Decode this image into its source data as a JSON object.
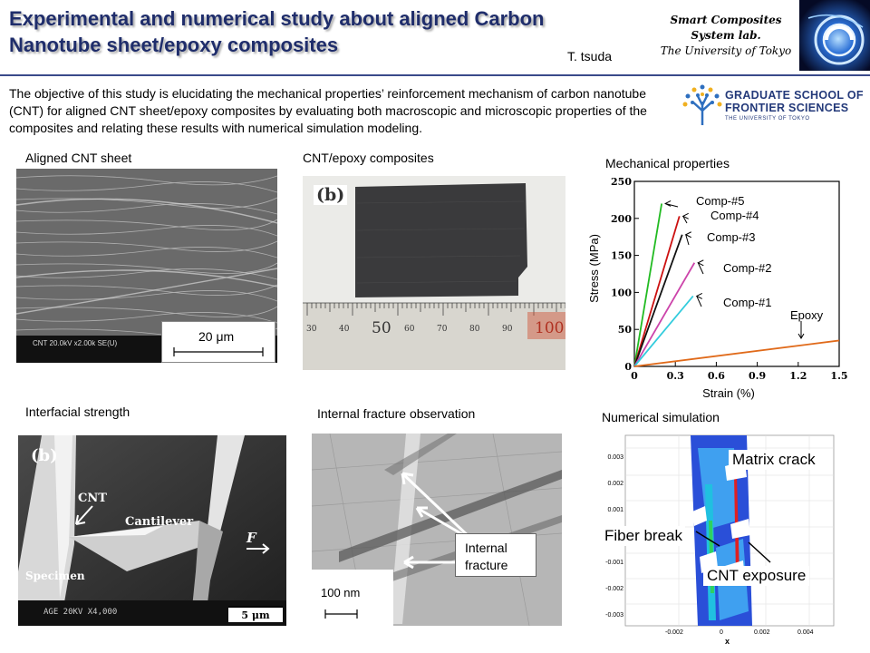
{
  "header": {
    "title_line1": "Experimental and numerical study about aligned Carbon",
    "title_line2": "Nanotube sheet/epoxy composites",
    "author": "T. tsuda",
    "lab_line1": "Smart Composites",
    "lab_line2": "System lab.",
    "lab_line3": "The University of Tokyo"
  },
  "objective": "The objective of this study is elucidating the mechanical properties’ reinforcement mechanism of carbon nanotube (CNT) for aligned CNT sheet/epoxy composites by evaluating both macroscopic and microscopic properties of the composites and relating these results with numerical simulation modeling.",
  "logo": {
    "line1": "GRADUATE SCHOOL OF",
    "line2": "FRONTIER SCIENCES",
    "line3": "THE UNIVERSITY OF TOKYO"
  },
  "panels": {
    "cnt_sheet": {
      "caption": "Aligned CNT sheet",
      "scale": "20 μm",
      "sem_label": "CNT 20.0kV x2.00k SE(U)"
    },
    "composites": {
      "caption": "CNT/epoxy composites",
      "label": "(b)",
      "ruler_ticks": [
        "30",
        "40",
        "50",
        "60",
        "70",
        "80",
        "90",
        "100"
      ]
    },
    "mechanical": {
      "caption": "Mechanical properties"
    },
    "interfacial": {
      "caption": "Interfacial strength",
      "label": "(b)",
      "cnt": "CNT",
      "cantilever": "Cantilever",
      "force": "F",
      "specimen": "Specimen",
      "scale": "5 μm",
      "sem_info": "AGE  20KV   X4,000"
    },
    "fracture": {
      "caption": "Internal fracture observation",
      "label_line1": "Internal",
      "label_line2": "fracture",
      "scale": "100 nm"
    },
    "simulation": {
      "caption": "Numerical simulation",
      "matrix_crack": "Matrix crack",
      "fiber_break": "Fiber break",
      "cnt_exposure": "CNT exposure",
      "y_ticks": [
        "0.003",
        "0.002",
        "0.001",
        "-0.001",
        "-0.002",
        "-0.003"
      ],
      "x_ticks": [
        "-0.002",
        "0",
        "0.002",
        "0.004"
      ],
      "x_label": "x"
    }
  },
  "chart_data": {
    "type": "line",
    "title": "Mechanical properties",
    "xlabel": "Strain (%)",
    "ylabel": "Stress (MPa)",
    "xlim": [
      0,
      1.5
    ],
    "ylim": [
      0,
      250
    ],
    "x_ticks": [
      0,
      0.3,
      0.6,
      0.9,
      1.2,
      1.5
    ],
    "y_ticks": [
      0,
      50,
      100,
      150,
      200,
      250
    ],
    "series": [
      {
        "name": "Comp-#5",
        "color": "#22bb22",
        "x": [
          0,
          0.2
        ],
        "y": [
          0,
          220
        ]
      },
      {
        "name": "Comp-#4",
        "color": "#cc1111",
        "x": [
          0,
          0.33
        ],
        "y": [
          0,
          203
        ]
      },
      {
        "name": "Comp-#3",
        "color": "#111111",
        "x": [
          0,
          0.35
        ],
        "y": [
          0,
          178
        ]
      },
      {
        "name": "Comp-#2",
        "color": "#cc44aa",
        "x": [
          0,
          0.44
        ],
        "y": [
          0,
          140
        ]
      },
      {
        "name": "Comp-#1",
        "color": "#33ccdd",
        "x": [
          0,
          0.43
        ],
        "y": [
          0,
          95
        ]
      },
      {
        "name": "Epoxy",
        "color": "#e06a1a",
        "x": [
          0,
          1.5
        ],
        "y": [
          0,
          35
        ]
      }
    ]
  }
}
